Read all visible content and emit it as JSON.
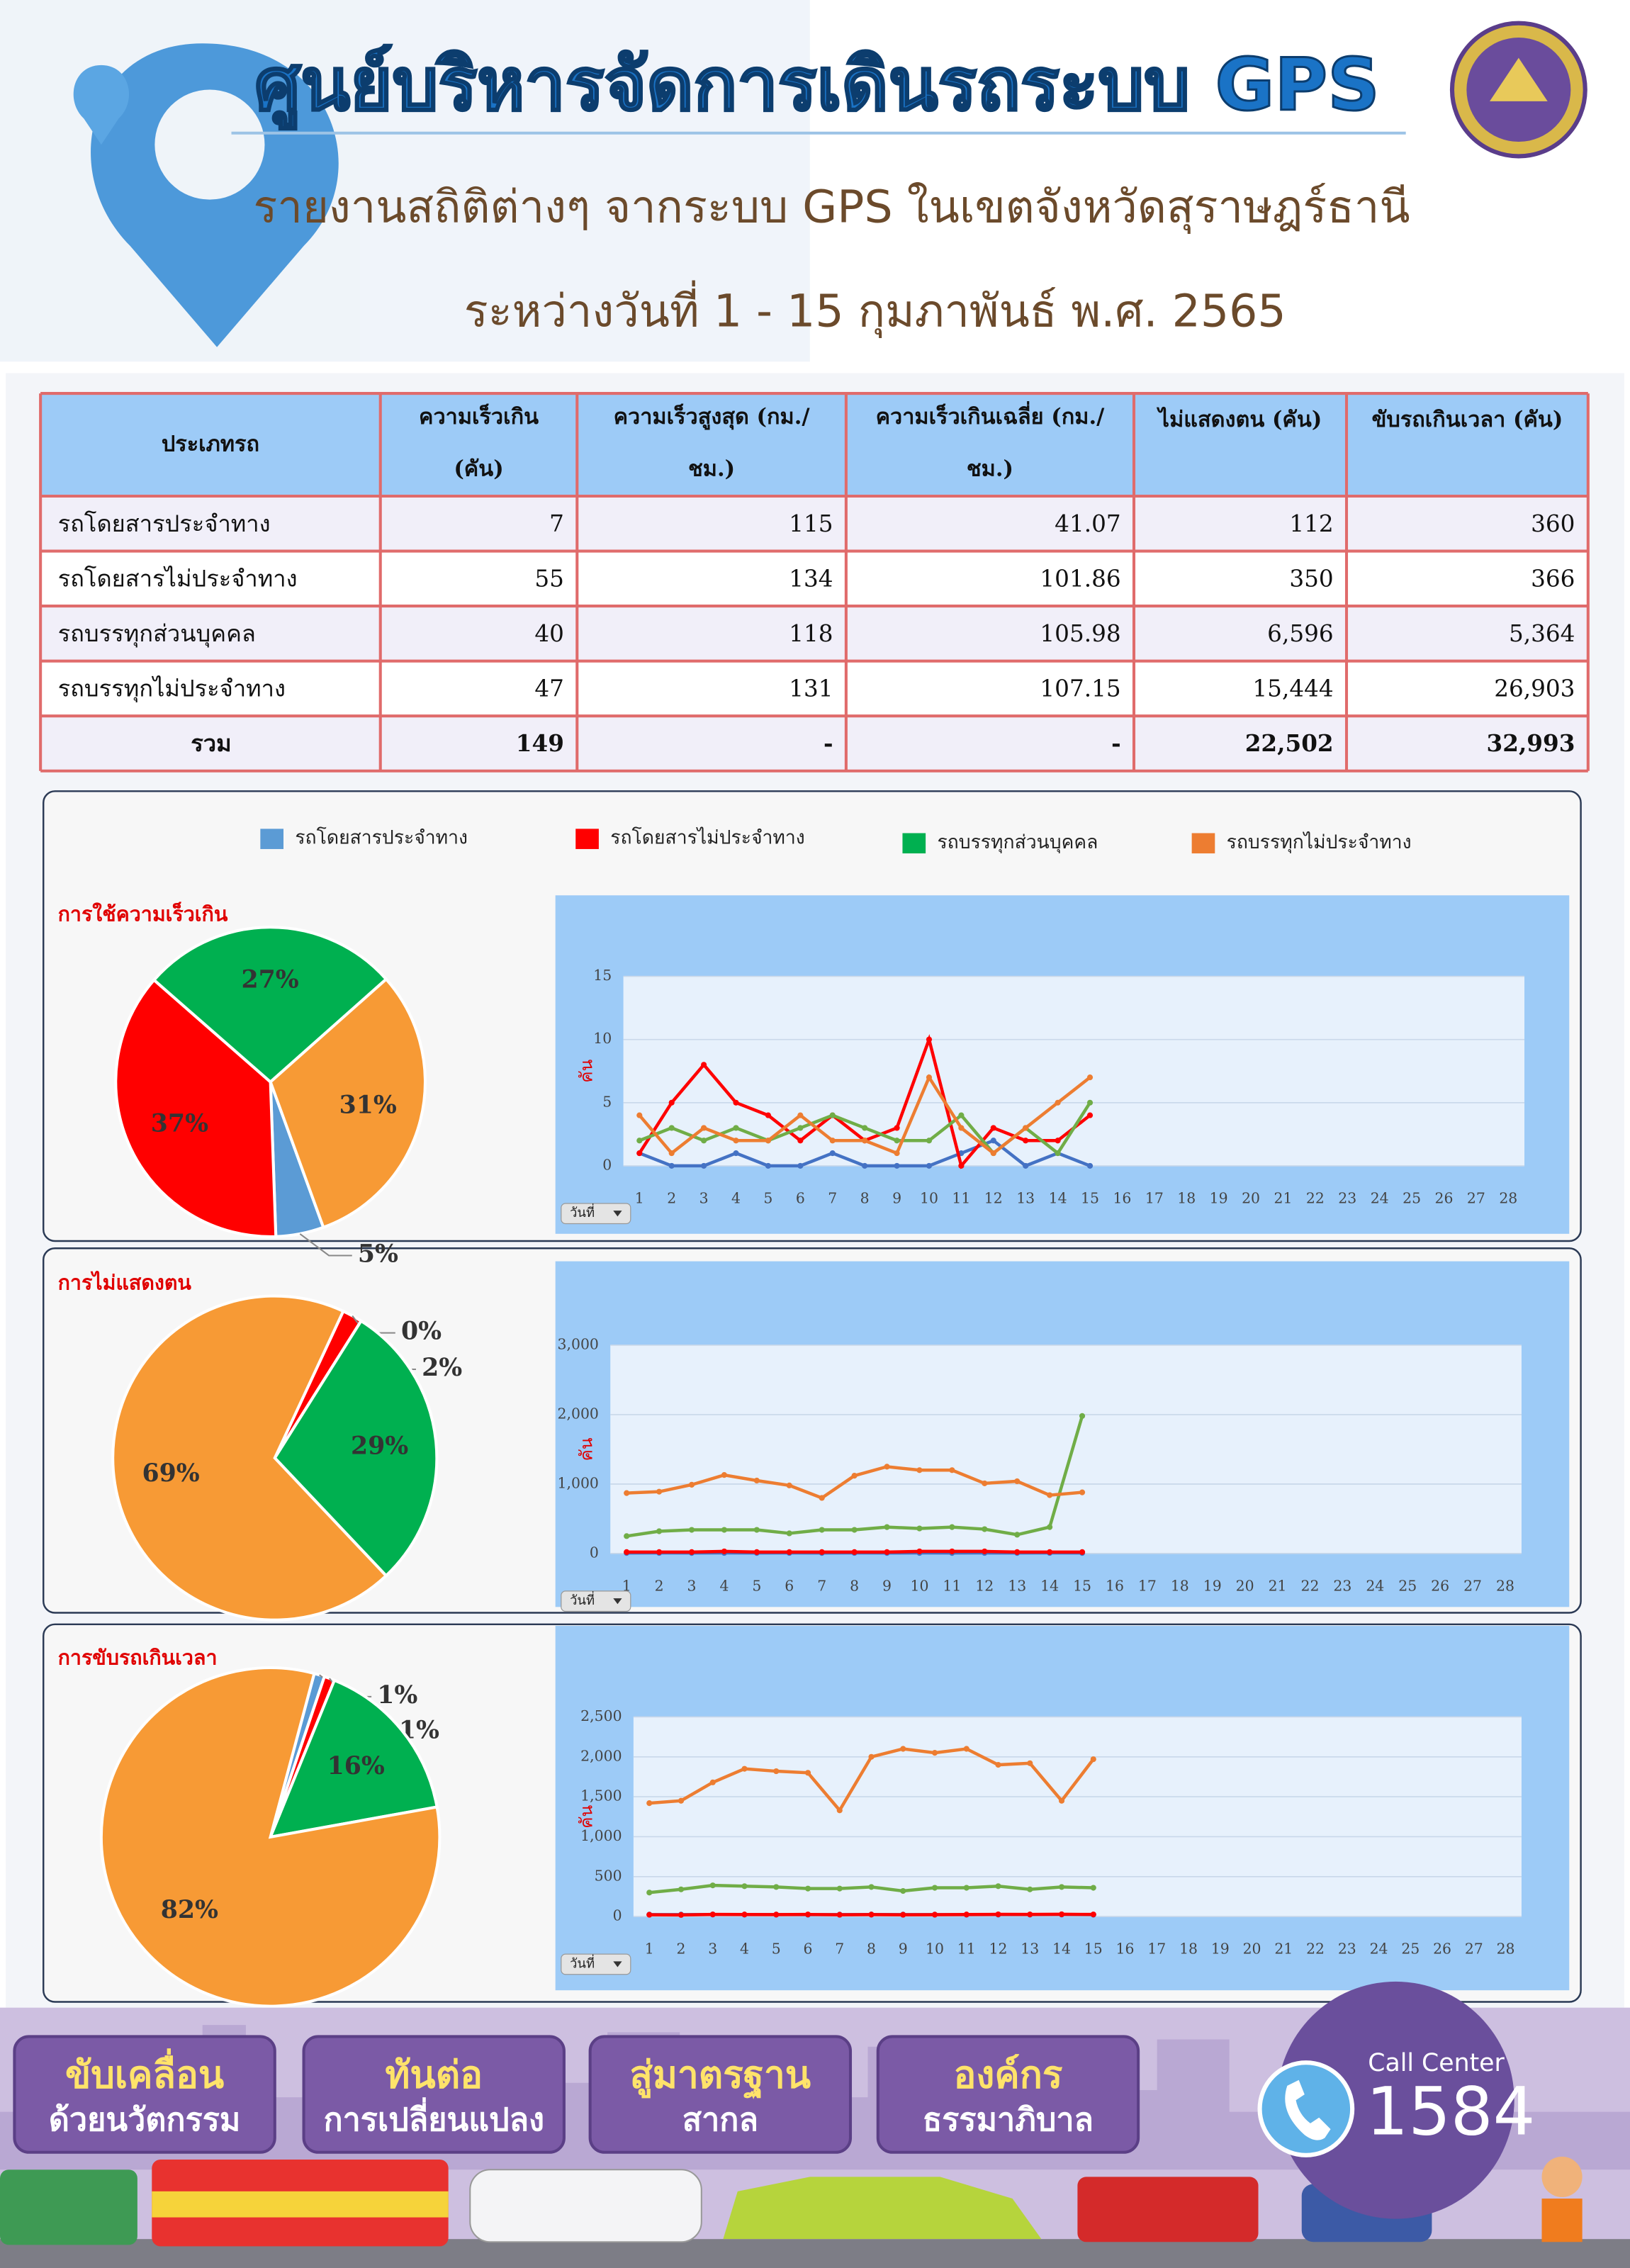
{
  "header": {
    "title": "ศูนย์บริหารจัดการเดินรถระบบ GPS",
    "subtitle": "รายงานสถิติต่างๆ จากระบบ GPS ในเขตจังหวัดสุราษฎร์ธานี",
    "date": "ระหว่างวันที่  1 - 15  กุมภาพันธ์  พ.ศ. 2565"
  },
  "table": {
    "headers": [
      [
        "ประเภทรถ"
      ],
      [
        "ความเร็วเกิน",
        "(คัน)"
      ],
      [
        "ความเร็วสูงสุด (กม./",
        "ชม.)"
      ],
      [
        "ความเร็วเกินเฉลี่ย (กม./",
        "ชม.)"
      ],
      [
        "ไม่แสดงตน (คัน)"
      ],
      [
        "ขับรถเกินเวลา (คัน)"
      ]
    ],
    "rows": [
      [
        "รถโดยสารประจำทาง",
        "7",
        "115",
        "41.07",
        "112",
        "360"
      ],
      [
        "รถโดยสารไม่ประจำทาง",
        "55",
        "134",
        "101.86",
        "350",
        "366"
      ],
      [
        "รถบรรทุกส่วนบุคคล",
        "40",
        "118",
        "105.98",
        "6,596",
        "5,364"
      ],
      [
        "รถบรรทุกไม่ประจำทาง",
        "47",
        "131",
        "107.15",
        "15,444",
        "26,903"
      ],
      [
        "รวม",
        "149",
        "-",
        "-",
        "22,502",
        "32,993"
      ]
    ]
  },
  "legend": [
    {
      "name": "รถโดยสารประจำทาง",
      "color": "#5b9bd5"
    },
    {
      "name": "รถโดยสารไม่ประจำทาง",
      "color": "#ff0000"
    },
    {
      "name": "รถบรรทุกส่วนบุคคล",
      "color": "#00b050"
    },
    {
      "name": "รถบรรทุกไม่ประจำทาง",
      "color": "#ed7d31"
    }
  ],
  "chart_data": [
    {
      "type": "pie",
      "title": "การใช้ความเร็วเกิน",
      "values": [
        5,
        37,
        27,
        31
      ],
      "value_labels": [
        "5%",
        "37%",
        "27%",
        "31%"
      ],
      "colors": [
        "#5b9bd5",
        "#ff0000",
        "#00b050",
        "#f79a35"
      ]
    },
    {
      "type": "line",
      "ylabel": "คัน",
      "xlabel": "วันที่",
      "categories": [
        1,
        2,
        3,
        4,
        5,
        6,
        7,
        8,
        9,
        10,
        11,
        12,
        13,
        14,
        15,
        16,
        17,
        18,
        19,
        20,
        21,
        22,
        23,
        24,
        25,
        26,
        27,
        28
      ],
      "ylim": [
        0,
        15
      ],
      "yticks": [
        0,
        5,
        10,
        15
      ],
      "series": [
        {
          "color": "#4472c4",
          "values": [
            1,
            0,
            0,
            1,
            0,
            0,
            1,
            0,
            0,
            0,
            1,
            2,
            0,
            1,
            0,
            null,
            null,
            null,
            null,
            null,
            null,
            null,
            null,
            null,
            null,
            null,
            null,
            null
          ]
        },
        {
          "color": "#ff0000",
          "values": [
            1,
            5,
            8,
            5,
            4,
            2,
            4,
            2,
            3,
            10,
            0,
            3,
            2,
            2,
            4,
            null,
            null,
            null,
            null,
            null,
            null,
            null,
            null,
            null,
            null,
            null,
            null,
            null
          ]
        },
        {
          "color": "#70ad47",
          "values": [
            2,
            3,
            2,
            3,
            2,
            3,
            4,
            3,
            2,
            2,
            4,
            1,
            3,
            1,
            5,
            null,
            null,
            null,
            null,
            null,
            null,
            null,
            null,
            null,
            null,
            null,
            null,
            null
          ]
        },
        {
          "color": "#ed7d31",
          "values": [
            4,
            1,
            3,
            2,
            2,
            4,
            2,
            2,
            1,
            7,
            3,
            1,
            3,
            5,
            7,
            null,
            null,
            null,
            null,
            null,
            null,
            null,
            null,
            null,
            null,
            null,
            null,
            null
          ]
        }
      ]
    },
    {
      "type": "pie",
      "title": "การไม่แสดงตน",
      "values": [
        0,
        2,
        29,
        69
      ],
      "value_labels": [
        "0%",
        "2%",
        "29%",
        "69%"
      ],
      "colors": [
        "#5b9bd5",
        "#ff0000",
        "#00b050",
        "#f79a35"
      ]
    },
    {
      "type": "line",
      "ylabel": "คัน",
      "xlabel": "วันที่",
      "categories": [
        1,
        2,
        3,
        4,
        5,
        6,
        7,
        8,
        9,
        10,
        11,
        12,
        13,
        14,
        15,
        16,
        17,
        18,
        19,
        20,
        21,
        22,
        23,
        24,
        25,
        26,
        27,
        28
      ],
      "ylim": [
        0,
        3000
      ],
      "yticks": [
        0,
        {
          "value": 1000,
          "label": "1,000"
        },
        {
          "value": 2000,
          "label": "2,000"
        },
        {
          "value": 3000,
          "label": "3,000"
        }
      ],
      "series": [
        {
          "color": "#4472c4",
          "values": [
            7,
            8,
            7,
            8,
            7,
            8,
            7,
            8,
            7,
            8,
            7,
            8,
            7,
            8,
            7,
            null,
            null,
            null,
            null,
            null,
            null,
            null,
            null,
            null,
            null,
            null,
            null,
            null
          ]
        },
        {
          "color": "#ff0000",
          "values": [
            20,
            20,
            20,
            30,
            20,
            20,
            20,
            20,
            20,
            30,
            30,
            30,
            20,
            20,
            20,
            null,
            null,
            null,
            null,
            null,
            null,
            null,
            null,
            null,
            null,
            null,
            null,
            null
          ]
        },
        {
          "color": "#70ad47",
          "values": [
            250,
            320,
            340,
            340,
            340,
            290,
            340,
            340,
            380,
            360,
            380,
            350,
            270,
            380,
            1980,
            null,
            null,
            null,
            null,
            null,
            null,
            null,
            null,
            null,
            null,
            null,
            null,
            null
          ]
        },
        {
          "color": "#ed7d31",
          "values": [
            870,
            890,
            990,
            1130,
            1050,
            980,
            800,
            1120,
            1250,
            1200,
            1200,
            1010,
            1040,
            840,
            880,
            null,
            null,
            null,
            null,
            null,
            null,
            null,
            null,
            null,
            null,
            null,
            null,
            null
          ]
        }
      ]
    },
    {
      "type": "pie",
      "title": "การขับรถเกินเวลา",
      "values": [
        1,
        1,
        16,
        82
      ],
      "value_labels": [
        "1%",
        "1%",
        "16%",
        "82%"
      ],
      "colors": [
        "#5b9bd5",
        "#ff0000",
        "#00b050",
        "#f79a35"
      ]
    },
    {
      "type": "line",
      "ylabel": "คัน",
      "xlabel": "วันที่",
      "categories": [
        1,
        2,
        3,
        4,
        5,
        6,
        7,
        8,
        9,
        10,
        11,
        12,
        13,
        14,
        15,
        16,
        17,
        18,
        19,
        20,
        21,
        22,
        23,
        24,
        25,
        26,
        27,
        28
      ],
      "ylim": [
        0,
        2500
      ],
      "yticks": [
        0,
        500,
        {
          "value": 1000,
          "label": "1,000"
        },
        {
          "value": 1500,
          "label": "1,500"
        },
        {
          "value": 2000,
          "label": "2,000"
        },
        {
          "value": 2500,
          "label": "2,500"
        }
      ],
      "series": [
        {
          "color": "#4472c4",
          "values": [
            24,
            24,
            25,
            24,
            24,
            23,
            24,
            25,
            24,
            24,
            23,
            24,
            24,
            25,
            23,
            null,
            null,
            null,
            null,
            null,
            null,
            null,
            null,
            null,
            null,
            null,
            null,
            null
          ]
        },
        {
          "color": "#ff0000",
          "values": [
            22,
            20,
            26,
            25,
            24,
            26,
            22,
            24,
            22,
            23,
            25,
            27,
            26,
            28,
            26,
            null,
            null,
            null,
            null,
            null,
            null,
            null,
            null,
            null,
            null,
            null,
            null,
            null
          ]
        },
        {
          "color": "#70ad47",
          "values": [
            300,
            340,
            390,
            380,
            370,
            350,
            350,
            370,
            320,
            360,
            360,
            380,
            340,
            370,
            360,
            null,
            null,
            null,
            null,
            null,
            null,
            null,
            null,
            null,
            null,
            null,
            null,
            null
          ]
        },
        {
          "color": "#ed7d31",
          "values": [
            1420,
            1450,
            1680,
            1850,
            1820,
            1800,
            1330,
            2000,
            2100,
            2050,
            2100,
            1900,
            1920,
            1450,
            1970,
            null,
            null,
            null,
            null,
            null,
            null,
            null,
            null,
            null,
            null,
            null,
            null,
            null
          ]
        }
      ]
    }
  ],
  "footer": {
    "badges": [
      [
        "ขับเคลื่อน",
        "ด้วยนวัตกรรม"
      ],
      [
        "ทันต่อ",
        "การเปลี่ยนแปลง"
      ],
      [
        "สู่มาตรฐาน",
        "สากล"
      ],
      [
        "องค์กร",
        "ธรรมาภิบาล"
      ]
    ],
    "call_center": "Call Center",
    "number": "1584"
  }
}
